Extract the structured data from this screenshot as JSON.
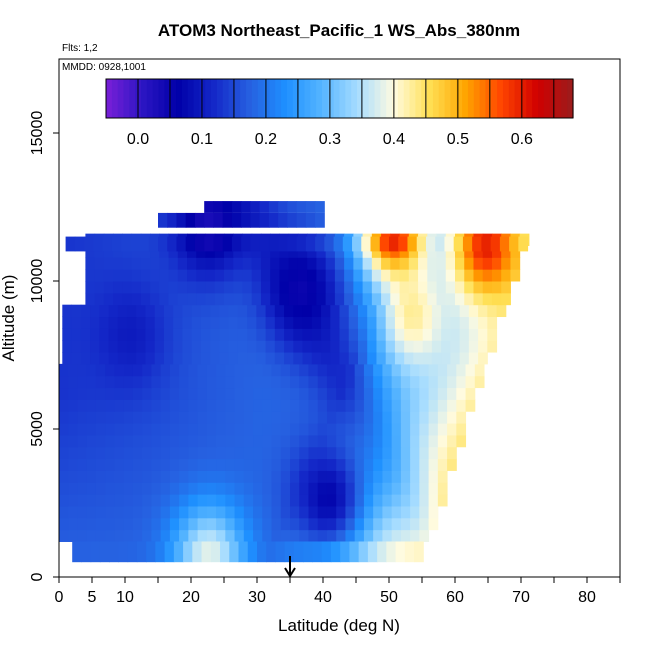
{
  "chart_data": {
    "type": "heatmap",
    "title": "ATOM3 Northeast_Pacific_1 WS_Abs_380nm",
    "notes": [
      "Flts: 1,2",
      "MMDD: 0928,1001"
    ],
    "xlabel": "Latitude (deg N)",
    "ylabel": "Altitude (m)",
    "xlim": [
      0,
      85
    ],
    "ylim": [
      0,
      17500
    ],
    "x_ticks": [
      0,
      5,
      10,
      20,
      30,
      40,
      50,
      60,
      70,
      80
    ],
    "x_minor_ticks": [
      0,
      5,
      10,
      15,
      20,
      25,
      30,
      35,
      40,
      45,
      50,
      55,
      60,
      65,
      70,
      75,
      80,
      85
    ],
    "y_ticks": [
      0,
      5000,
      10000,
      15000
    ],
    "colorbar": {
      "range": [
        -0.05,
        0.68
      ],
      "ticks": [
        0.0,
        0.1,
        0.2,
        0.3,
        0.4,
        0.5,
        0.6
      ],
      "colors": [
        "#7a1fd8",
        "#2d16c4",
        "#0000a8",
        "#1428c8",
        "#2660e0",
        "#1e90ff",
        "#55b4ff",
        "#a6dcff",
        "#fffbe0",
        "#ffe055",
        "#ffa500",
        "#ff4500",
        "#d00000",
        "#9b1c1c"
      ]
    },
    "marker": {
      "latitude": 35,
      "symbol": "arrow"
    },
    "field": {
      "lat_range": [
        0,
        70
      ],
      "alt_range": [
        500,
        12900
      ],
      "description": "gridded WS_Abs_380nm values by latitude and altitude",
      "features": [
        {
          "lat": 53,
          "alt": 8500,
          "value": 0.42
        },
        {
          "lat": 22,
          "alt": 500,
          "value": 0.38
        },
        {
          "lat": 50,
          "alt": 11500,
          "value": 0.6
        },
        {
          "lat": 64,
          "alt": 11000,
          "value": 0.6
        },
        {
          "lat": 36,
          "alt": 9500,
          "value": 0.05
        },
        {
          "lat": 40,
          "alt": 2500,
          "value": 0.07
        },
        {
          "lat": 10,
          "alt": 8000,
          "value": 0.1
        },
        {
          "lat": 22,
          "alt": 11800,
          "value": 0.03
        }
      ]
    }
  }
}
